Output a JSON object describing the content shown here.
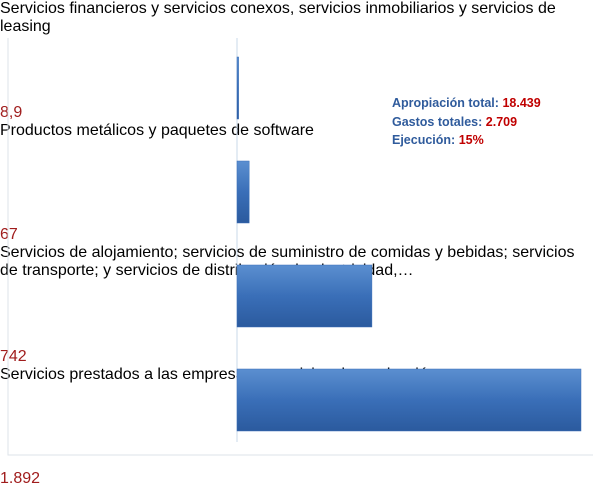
{
  "chart_data": {
    "type": "barh",
    "categories": [
      "Servicios financieros y servicios conexos, servicios inmobiliarios y servicios de leasing",
      "Productos metálicos y paquetes de software",
      "Servicios de alojamiento; servicios de suministro de comidas y bebidas; servicios de transporte; y servicios de distribución de electricidad,…",
      "Servicios prestados a las empresas y servicios de producción"
    ],
    "values": [
      8.9,
      67,
      742,
      1892
    ],
    "value_labels": [
      "8,9",
      "67",
      "742",
      "1.892"
    ],
    "color": "#3a6fb8",
    "label_color": "#a01c1c",
    "annotations": [
      {
        "label": "Apropiación total:",
        "value": "18.439"
      },
      {
        "label": "Gastos totales:",
        "value": "2.709"
      },
      {
        "label": "Ejecución:",
        "value": "15%"
      }
    ]
  }
}
